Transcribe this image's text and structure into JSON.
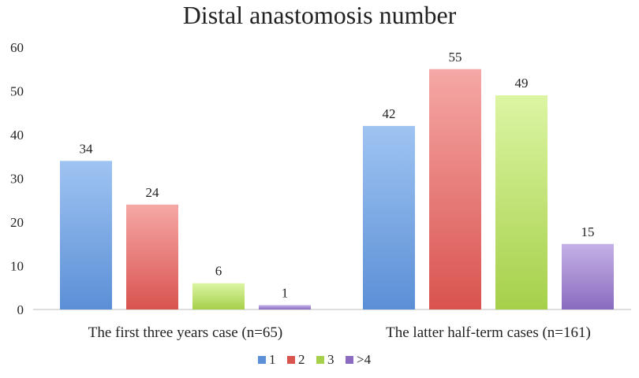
{
  "chart_data": {
    "type": "bar",
    "title": "Distal anastomosis number",
    "xlabel": "",
    "ylabel": "",
    "ylim": [
      0,
      60
    ],
    "yticks": [
      0,
      10,
      20,
      30,
      40,
      50,
      60
    ],
    "grid": false,
    "legend_position": "bottom",
    "categories": [
      "The first three years case (n=65)",
      "The latter half-term cases (n=161)"
    ],
    "series": [
      {
        "name": "1",
        "values": [
          34,
          42
        ],
        "color": "#5b8fd6",
        "color_light": "#9fc4f2"
      },
      {
        "name": "2",
        "values": [
          24,
          55
        ],
        "color": "#d9534f",
        "color_light": "#f5a8a6"
      },
      {
        "name": "3",
        "values": [
          6,
          49
        ],
        "color": "#a6d04a",
        "color_light": "#dcf5a3"
      },
      {
        "name": ">4",
        "values": [
          1,
          15
        ],
        "color": "#8a6bbf",
        "color_light": "#c4b1e6"
      }
    ]
  }
}
